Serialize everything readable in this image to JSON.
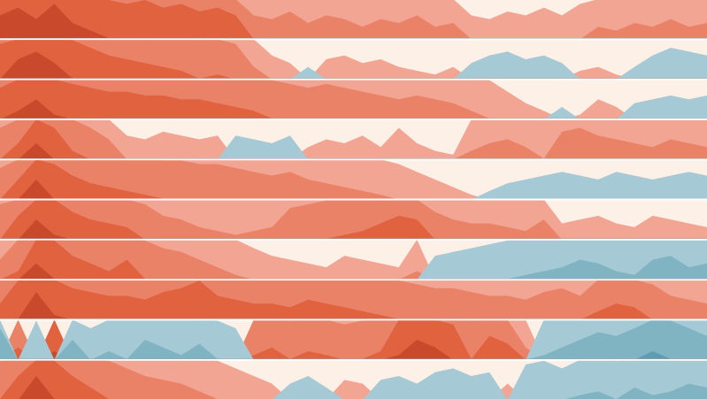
{
  "chart_data": {
    "type": "horizon",
    "background": "#fdf0e6",
    "positive_colors": [
      "#f2a592",
      "#ea8268",
      "#e0623f",
      "#c8492c"
    ],
    "negative_colors": [
      "#a5cad5",
      "#80b4c3",
      "#5e9db0"
    ],
    "series": [
      {
        "values": [
          3.6,
          3.8,
          3.5,
          3.9,
          3.4,
          3.2,
          3.0,
          2.9,
          3.0,
          2.8,
          2.9,
          2.7,
          2.8,
          2.6,
          1.6,
          1.5,
          1.7,
          1.4,
          1.6,
          1.5,
          1.3,
          1.5,
          1.4,
          1.6,
          1.3,
          1.4,
          0.6,
          0.5,
          0.7,
          0.6,
          0.8,
          0.6,
          0.9,
          1.3,
          1.2,
          1.4,
          1.3,
          1.5,
          1.3,
          1.4
        ]
      },
      {
        "values": [
          2.9,
          3.5,
          3.7,
          3.4,
          3.0,
          2.8,
          2.6,
          2.5,
          2.4,
          2.3,
          2.2,
          2.0,
          2.1,
          1.9,
          1.3,
          0.6,
          0.4,
          -0.3,
          0.5,
          0.6,
          0.4,
          0.5,
          0.3,
          0.2,
          0.1,
          0.3,
          -0.4,
          -0.6,
          -0.7,
          -0.5,
          -0.6,
          -0.4,
          0.2,
          0.3,
          0.1,
          -0.3,
          -0.6,
          -0.8,
          -0.7,
          -0.6
        ]
      },
      {
        "values": [
          2.8,
          3.2,
          3.5,
          3.1,
          2.9,
          2.8,
          2.7,
          2.7,
          2.6,
          2.6,
          2.5,
          2.5,
          2.4,
          2.3,
          2.2,
          2.0,
          1.9,
          1.8,
          1.9,
          1.8,
          1.7,
          1.6,
          1.5,
          1.6,
          1.5,
          1.4,
          1.2,
          1.0,
          0.7,
          0.4,
          0.2,
          -0.3,
          0.1,
          0.5,
          0.3,
          -0.4,
          -0.5,
          -0.6,
          -0.5,
          -0.6
        ]
      },
      {
        "values": [
          1.8,
          2.4,
          3.4,
          2.8,
          2.2,
          1.8,
          1.5,
          0.6,
          0.5,
          0.7,
          0.6,
          0.5,
          0.6,
          -0.6,
          -0.5,
          -0.4,
          -0.6,
          0.3,
          0.5,
          0.4,
          0.6,
          0.3,
          0.8,
          0.4,
          0.2,
          0.1,
          1.2,
          1.4,
          1.5,
          1.3,
          1.0,
          1.7,
          1.8,
          1.6,
          1.5,
          1.4,
          1.3,
          1.5,
          1.4,
          1.3
        ]
      },
      {
        "values": [
          1.8,
          2.5,
          3.5,
          2.9,
          2.6,
          2.4,
          2.3,
          2.2,
          2.1,
          2.0,
          2.0,
          1.9,
          1.9,
          1.8,
          1.7,
          1.6,
          1.7,
          1.5,
          1.4,
          1.3,
          1.2,
          1.1,
          0.9,
          0.7,
          0.5,
          0.3,
          0.1,
          -0.2,
          -0.4,
          -0.5,
          -0.6,
          -0.7,
          -0.6,
          -0.5,
          -0.7,
          -0.6,
          -0.5,
          -0.6,
          -0.7,
          -0.6
        ]
      },
      {
        "values": [
          1.9,
          2.6,
          3.5,
          3.1,
          2.7,
          2.5,
          2.4,
          2.3,
          1.9,
          1.6,
          1.5,
          1.3,
          1.2,
          1.1,
          1.2,
          1.3,
          1.8,
          1.9,
          2.0,
          2.1,
          2.2,
          2.4,
          2.6,
          2.5,
          1.7,
          1.5,
          1.4,
          1.4,
          1.3,
          1.2,
          1.5,
          0.4,
          0.5,
          0.6,
          0.4,
          0.3,
          0.6,
          0.5,
          0.4,
          0.3
        ]
      },
      {
        "values": [
          1.5,
          2.2,
          3.4,
          3.0,
          2.6,
          2.4,
          2.2,
          2.5,
          2.0,
          1.8,
          1.7,
          1.5,
          1.3,
          1.1,
          0.8,
          0.6,
          0.5,
          0.4,
          0.3,
          0.6,
          0.5,
          0.4,
          0.3,
          1.2,
          -0.6,
          -0.7,
          -0.8,
          -0.9,
          -1.0,
          -1.1,
          -1.2,
          -1.3,
          -1.5,
          -1.4,
          -1.2,
          -1.1,
          -1.5,
          -1.6,
          -1.3,
          -1.4
        ]
      },
      {
        "values": [
          2.4,
          3.0,
          3.7,
          3.1,
          2.8,
          2.7,
          2.6,
          2.6,
          2.5,
          2.7,
          2.8,
          3.0,
          2.6,
          2.5,
          2.4,
          2.4,
          2.3,
          2.5,
          2.4,
          2.3,
          2.2,
          2.1,
          2.0,
          1.9,
          1.8,
          1.8,
          1.7,
          1.6,
          1.6,
          1.5,
          1.7,
          1.8,
          1.6,
          2.2,
          2.4,
          2.3,
          1.9,
          1.6,
          1.5,
          1.4
        ]
      },
      {
        "values": [
          -1.8,
          2.3,
          -1.0,
          3.2,
          -1.5,
          -0.8,
          -1.2,
          -1.0,
          -1.5,
          -1.3,
          -1.1,
          -1.4,
          -1.0,
          -0.8,
          2.1,
          2.3,
          2.0,
          2.2,
          2.1,
          1.9,
          2.0,
          2.2,
          3.1,
          3.5,
          3.3,
          2.9,
          2.0,
          2.6,
          2.4,
          1.3,
          -1.1,
          -1.3,
          -1.5,
          -1.7,
          -1.6,
          -1.8,
          -2.2,
          -2.0,
          -1.8,
          -1.6
        ]
      },
      {
        "values": [
          2.0,
          2.6,
          3.6,
          3.0,
          2.6,
          2.3,
          2.0,
          1.8,
          1.6,
          1.5,
          1.4,
          1.2,
          1.0,
          0.8,
          0.6,
          0.4,
          -0.4,
          -0.6,
          -0.3,
          0.5,
          0.4,
          -0.5,
          -0.6,
          -0.4,
          -0.7,
          -0.8,
          -0.6,
          -0.7,
          0.4,
          -0.9,
          -1.0,
          -0.8,
          -1.1,
          -1.2,
          -1.0,
          -1.3,
          -1.1,
          -1.2,
          -1.4,
          -1.3
        ]
      }
    ]
  }
}
